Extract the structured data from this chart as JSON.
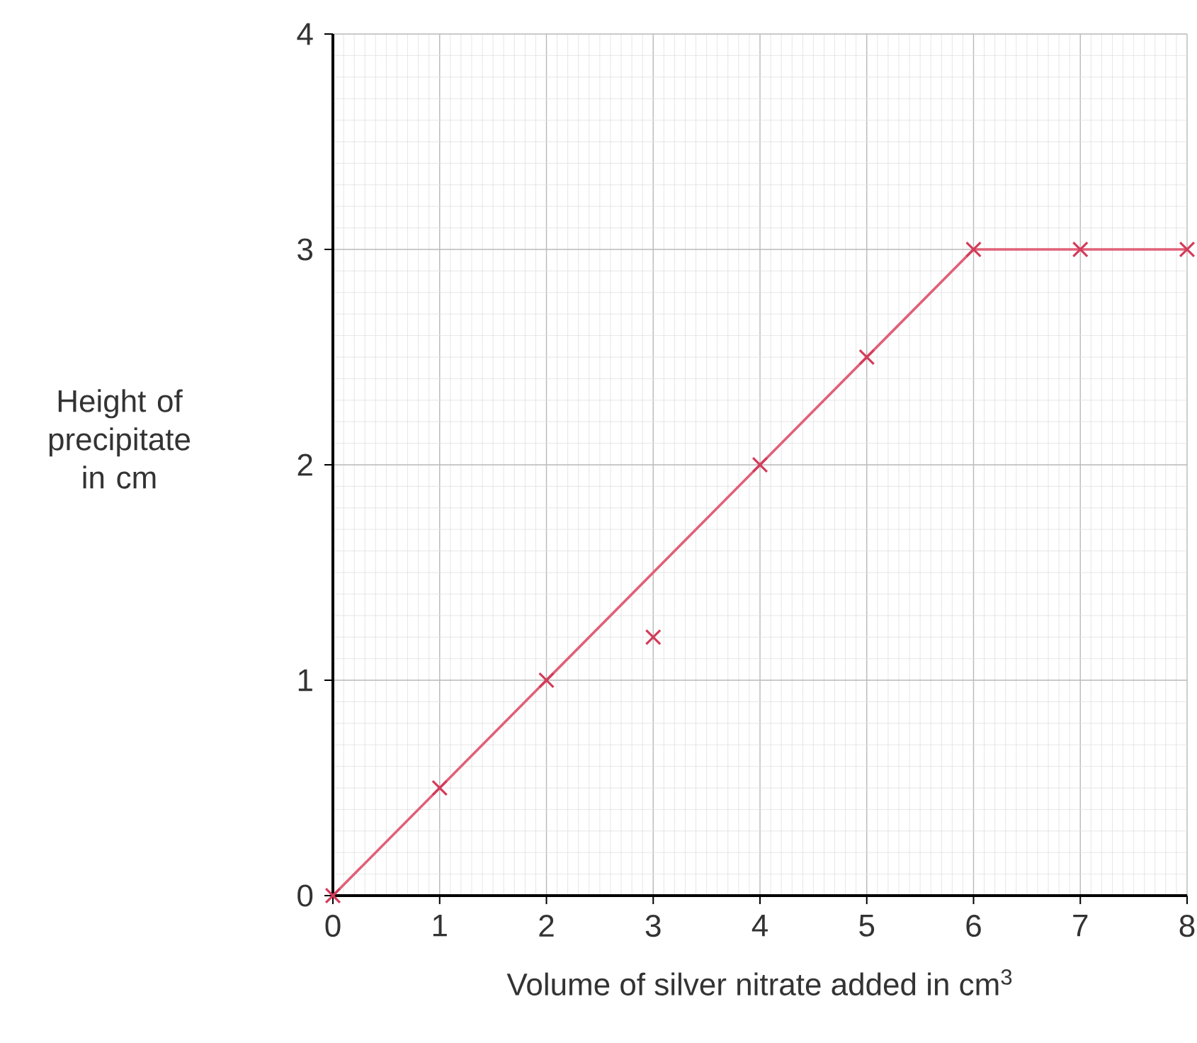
{
  "chart_data": {
    "type": "scatter",
    "xlabel": "Volume of silver nitrate added in cm$^{3}$",
    "ylabel": "Height of precipitate in cm",
    "xlim": [
      0,
      8
    ],
    "ylim": [
      0,
      4
    ],
    "xticks": [
      0,
      1,
      2,
      3,
      4,
      5,
      6,
      7,
      8
    ],
    "yticks": [
      0,
      1,
      2,
      3,
      4
    ],
    "grid": true,
    "marker": "cross",
    "series": [
      {
        "type": "line",
        "color": "#e06078",
        "x": [
          0,
          6,
          8
        ],
        "values": [
          0,
          3,
          3
        ],
        "marker": "none",
        "line_style": "solid"
      },
      {
        "color": "#d23c5a",
        "x": [
          0,
          1,
          2,
          3,
          4,
          5,
          6,
          7,
          8
        ],
        "values": [
          0,
          0.5,
          1,
          1.2,
          2,
          2.5,
          3,
          3,
          3
        ]
      }
    ]
  }
}
